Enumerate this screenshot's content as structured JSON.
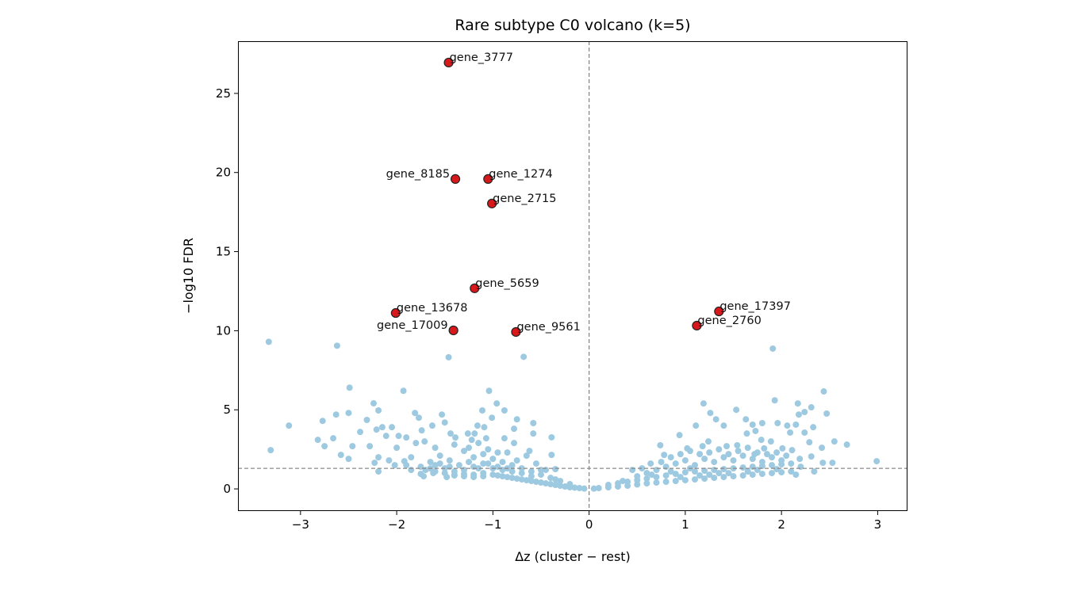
{
  "chart_data": {
    "type": "scatter",
    "title": "Rare subtype C0 volcano (k=5)",
    "xlabel": "Δz (cluster − rest)",
    "ylabel": "−log10 FDR",
    "xlim": [
      -3.65,
      3.31
    ],
    "ylim": [
      -1.4,
      28.3
    ],
    "xticks": [
      -3,
      -2,
      -1,
      0,
      1,
      2,
      3
    ],
    "xtick_labels": [
      "−3",
      "−2",
      "−1",
      "0",
      "1",
      "2",
      "3"
    ],
    "yticks": [
      0,
      5,
      10,
      15,
      20,
      25
    ],
    "ytick_labels": [
      "0",
      "5",
      "10",
      "15",
      "20",
      "25"
    ],
    "grid": false,
    "reference_lines": {
      "vertical_x": 0,
      "horizontal_y": 1.3
    },
    "colors": {
      "background_points": "#9ecae1",
      "highlight_points": "#d7191c",
      "highlight_edge": "#222222",
      "reference_line": "#888888"
    },
    "highlighted": [
      {
        "label": "gene_3777",
        "x": -1.46,
        "y": 26.95
      },
      {
        "label": "gene_8185",
        "x": -1.39,
        "y": 19.59
      },
      {
        "label": "gene_1274",
        "x": -1.05,
        "y": 19.59
      },
      {
        "label": "gene_2715",
        "x": -1.01,
        "y": 18.04
      },
      {
        "label": "gene_5659",
        "x": -1.19,
        "y": 12.68
      },
      {
        "label": "gene_13678",
        "x": -2.01,
        "y": 11.12
      },
      {
        "label": "gene_17009",
        "x": -1.41,
        "y": 10.02
      },
      {
        "label": "gene_9561",
        "x": -0.76,
        "y": 9.92
      },
      {
        "label": "gene_17397",
        "x": 1.35,
        "y": 11.22
      },
      {
        "label": "gene_2760",
        "x": 1.12,
        "y": 10.32
      }
    ],
    "points": [
      [
        -3.33,
        9.3
      ],
      [
        -2.62,
        9.05
      ],
      [
        -1.46,
        8.32
      ],
      [
        -0.68,
        8.35
      ],
      [
        -2.49,
        6.4
      ],
      [
        -1.93,
        6.2
      ],
      [
        -1.04,
        6.2
      ],
      [
        -2.24,
        5.41
      ],
      [
        -2.19,
        4.96
      ],
      [
        -3.12,
        4.0
      ],
      [
        -2.77,
        4.3
      ],
      [
        -2.63,
        4.7
      ],
      [
        -2.5,
        4.8
      ],
      [
        -2.31,
        4.36
      ],
      [
        -3.31,
        2.45
      ],
      [
        -2.82,
        3.1
      ],
      [
        -2.66,
        3.2
      ],
      [
        -2.75,
        2.7
      ],
      [
        -2.58,
        2.15
      ],
      [
        -2.5,
        1.9
      ],
      [
        -2.46,
        2.7
      ],
      [
        -2.38,
        3.6
      ],
      [
        -2.21,
        3.75
      ],
      [
        -2.15,
        3.9
      ],
      [
        -2.05,
        3.9
      ],
      [
        -2.11,
        3.35
      ],
      [
        -2.28,
        2.7
      ],
      [
        -2.19,
        2.0
      ],
      [
        -2.23,
        1.65
      ],
      [
        -2.19,
        1.1
      ],
      [
        -1.98,
        3.35
      ],
      [
        -1.9,
        3.25
      ],
      [
        -2.08,
        1.8
      ],
      [
        -2.02,
        1.5
      ],
      [
        -1.92,
        1.75
      ],
      [
        -1.81,
        4.8
      ],
      [
        -1.77,
        4.5
      ],
      [
        -1.53,
        4.7
      ],
      [
        -1.5,
        4.2
      ],
      [
        -1.63,
        4.0
      ],
      [
        -1.74,
        3.7
      ],
      [
        -1.44,
        3.5
      ],
      [
        -1.26,
        3.5
      ],
      [
        -1.19,
        3.5
      ],
      [
        -1.16,
        4.0
      ],
      [
        -1.09,
        3.9
      ],
      [
        -1.11,
        4.96
      ],
      [
        -1.01,
        4.5
      ],
      [
        -0.96,
        5.4
      ],
      [
        -0.88,
        4.96
      ],
      [
        -0.75,
        4.4
      ],
      [
        -0.58,
        4.16
      ],
      [
        -0.58,
        3.5
      ],
      [
        -0.39,
        3.26
      ],
      [
        -0.39,
        2.15
      ],
      [
        -0.78,
        3.8
      ],
      [
        -0.88,
        3.2
      ],
      [
        -1.07,
        3.2
      ],
      [
        -1.22,
        3.1
      ],
      [
        -1.39,
        3.25
      ],
      [
        -1.71,
        3.0
      ],
      [
        -1.75,
        0.95
      ],
      [
        -1.48,
        0.75
      ],
      [
        -1.62,
        1.0
      ],
      [
        -0.35,
        1.25
      ],
      [
        -0.05,
        0.02
      ],
      [
        -0.1,
        0.05
      ],
      [
        -0.15,
        0.08
      ],
      [
        -0.2,
        0.1
      ],
      [
        -0.25,
        0.15
      ],
      [
        -0.3,
        0.2
      ],
      [
        -0.35,
        0.25
      ],
      [
        -0.4,
        0.3
      ],
      [
        -0.45,
        0.35
      ],
      [
        -0.5,
        0.4
      ],
      [
        -0.55,
        0.45
      ],
      [
        -0.6,
        0.5
      ],
      [
        -0.65,
        0.55
      ],
      [
        -0.7,
        0.6
      ],
      [
        -0.75,
        0.65
      ],
      [
        -0.8,
        0.7
      ],
      [
        -0.85,
        0.75
      ],
      [
        -0.9,
        0.8
      ],
      [
        -0.95,
        0.85
      ],
      [
        -1.0,
        0.9
      ],
      [
        -1.1,
        0.8
      ],
      [
        -1.2,
        0.75
      ],
      [
        -1.3,
        0.8
      ],
      [
        -1.4,
        0.85
      ],
      [
        -0.3,
        0.5
      ],
      [
        -0.4,
        0.7
      ],
      [
        -0.5,
        0.9
      ],
      [
        -0.6,
        1.1
      ],
      [
        -0.7,
        1.3
      ],
      [
        -0.8,
        1.5
      ],
      [
        -0.9,
        1.7
      ],
      [
        -1.0,
        1.9
      ],
      [
        -1.1,
        1.6
      ],
      [
        -1.2,
        1.4
      ],
      [
        -1.3,
        1.2
      ],
      [
        -1.4,
        1.1
      ],
      [
        -1.5,
        1.3
      ],
      [
        -1.6,
        1.5
      ],
      [
        -1.1,
        1.0
      ],
      [
        -1.2,
        0.9
      ],
      [
        -1.3,
        0.95
      ],
      [
        -1.4,
        0.9
      ],
      [
        -1.5,
        1.0
      ],
      [
        -1.6,
        1.1
      ],
      [
        -1.7,
        1.2
      ],
      [
        -0.6,
        0.8
      ],
      [
        -0.7,
        1.0
      ],
      [
        -0.8,
        1.1
      ],
      [
        -0.9,
        1.2
      ],
      [
        -1.0,
        1.3
      ],
      [
        -1.1,
        2.2
      ],
      [
        -1.2,
        2.0
      ],
      [
        -1.3,
        2.4
      ],
      [
        -0.95,
        2.3
      ],
      [
        -0.75,
        1.8
      ],
      [
        -0.65,
        2.1
      ],
      [
        -0.55,
        1.6
      ],
      [
        -0.45,
        1.2
      ],
      [
        -1.45,
        1.8
      ],
      [
        -1.55,
        2.1
      ],
      [
        -1.65,
        1.7
      ],
      [
        -1.75,
        1.4
      ],
      [
        -1.85,
        2.0
      ],
      [
        -1.9,
        1.5
      ],
      [
        -2.0,
        2.6
      ],
      [
        -1.8,
        2.9
      ],
      [
        -1.6,
        2.6
      ],
      [
        -1.4,
        2.8
      ],
      [
        -1.25,
        2.6
      ],
      [
        -1.15,
        2.9
      ],
      [
        -1.05,
        2.5
      ],
      [
        -0.85,
        2.3
      ],
      [
        -0.78,
        2.9
      ],
      [
        -0.62,
        2.4
      ],
      [
        -1.72,
        0.8
      ],
      [
        -1.35,
        1.5
      ],
      [
        -1.25,
        1.7
      ],
      [
        -1.05,
        1.6
      ],
      [
        -0.95,
        1.4
      ],
      [
        -0.85,
        1.3
      ],
      [
        -1.15,
        1.3
      ],
      [
        -1.45,
        1.4
      ],
      [
        -1.55,
        1.6
      ],
      [
        -1.65,
        1.3
      ],
      [
        -0.5,
        1.2
      ],
      [
        -0.2,
        0.3
      ],
      [
        -0.35,
        0.6
      ],
      [
        -1.85,
        1.2
      ],
      [
        1.91,
        8.87
      ],
      [
        2.44,
        6.16
      ],
      [
        1.93,
        5.6
      ],
      [
        1.19,
        5.4
      ],
      [
        2.17,
        5.4
      ],
      [
        2.31,
        5.16
      ],
      [
        2.24,
        4.86
      ],
      [
        2.47,
        4.76
      ],
      [
        2.18,
        4.7
      ],
      [
        1.53,
        5.0
      ],
      [
        1.26,
        4.8
      ],
      [
        1.32,
        4.4
      ],
      [
        1.4,
        4.0
      ],
      [
        1.63,
        4.4
      ],
      [
        1.11,
        4.0
      ],
      [
        0.94,
        3.4
      ],
      [
        0.74,
        2.76
      ],
      [
        1.96,
        4.16
      ],
      [
        2.06,
        4.0
      ],
      [
        2.15,
        4.06
      ],
      [
        2.33,
        3.9
      ],
      [
        2.24,
        3.56
      ],
      [
        1.8,
        4.16
      ],
      [
        1.7,
        4.06
      ],
      [
        1.73,
        3.66
      ],
      [
        1.64,
        3.5
      ],
      [
        1.79,
        3.1
      ],
      [
        1.89,
        3.0
      ],
      [
        2.09,
        3.56
      ],
      [
        2.29,
        2.95
      ],
      [
        2.42,
        2.6
      ],
      [
        2.55,
        3.0
      ],
      [
        2.68,
        2.8
      ],
      [
        2.99,
        1.75
      ],
      [
        2.53,
        1.65
      ],
      [
        2.43,
        1.65
      ],
      [
        2.34,
        1.1
      ],
      [
        2.31,
        2.05
      ],
      [
        2.19,
        1.9
      ],
      [
        1.24,
        3.0
      ],
      [
        1.18,
        2.7
      ],
      [
        1.02,
        2.56
      ],
      [
        0.78,
        2.15
      ],
      [
        0.64,
        1.6
      ],
      [
        1.82,
        2.56
      ],
      [
        1.43,
        2.7
      ],
      [
        1.54,
        2.76
      ],
      [
        1.72,
        2.2
      ],
      [
        2.01,
        2.56
      ],
      [
        2.11,
        2.45
      ],
      [
        0.05,
        0.02
      ],
      [
        0.1,
        0.05
      ],
      [
        0.2,
        0.1
      ],
      [
        0.3,
        0.15
      ],
      [
        0.4,
        0.2
      ],
      [
        0.5,
        0.28
      ],
      [
        0.6,
        0.35
      ],
      [
        0.7,
        0.4
      ],
      [
        0.8,
        0.45
      ],
      [
        0.9,
        0.5
      ],
      [
        1.0,
        0.55
      ],
      [
        1.1,
        0.6
      ],
      [
        1.2,
        0.65
      ],
      [
        1.3,
        0.7
      ],
      [
        1.4,
        0.75
      ],
      [
        1.5,
        0.8
      ],
      [
        1.6,
        0.85
      ],
      [
        1.7,
        0.9
      ],
      [
        1.8,
        0.95
      ],
      [
        1.9,
        1.0
      ],
      [
        2.0,
        1.05
      ],
      [
        2.1,
        1.1
      ],
      [
        0.3,
        0.35
      ],
      [
        0.4,
        0.45
      ],
      [
        0.5,
        0.55
      ],
      [
        0.6,
        0.65
      ],
      [
        0.7,
        0.75
      ],
      [
        0.8,
        0.85
      ],
      [
        0.9,
        0.95
      ],
      [
        1.0,
        1.05
      ],
      [
        1.1,
        1.1
      ],
      [
        1.2,
        1.15
      ],
      [
        1.3,
        1.2
      ],
      [
        1.4,
        1.25
      ],
      [
        1.5,
        1.3
      ],
      [
        1.6,
        1.35
      ],
      [
        1.7,
        1.4
      ],
      [
        1.8,
        1.45
      ],
      [
        1.9,
        1.5
      ],
      [
        2.0,
        1.55
      ],
      [
        0.5,
        0.8
      ],
      [
        0.6,
        1.0
      ],
      [
        0.7,
        1.2
      ],
      [
        0.8,
        1.4
      ],
      [
        0.9,
        1.6
      ],
      [
        1.0,
        1.8
      ],
      [
        1.1,
        1.5
      ],
      [
        1.2,
        1.9
      ],
      [
        1.3,
        1.7
      ],
      [
        1.4,
        2.0
      ],
      [
        1.5,
        1.8
      ],
      [
        1.6,
        2.1
      ],
      [
        1.7,
        1.9
      ],
      [
        1.8,
        1.7
      ],
      [
        1.9,
        2.0
      ],
      [
        2.0,
        1.8
      ],
      [
        2.1,
        1.6
      ],
      [
        2.2,
        1.4
      ],
      [
        0.45,
        1.2
      ],
      [
        0.55,
        1.3
      ],
      [
        0.75,
        1.7
      ],
      [
        0.85,
        2.0
      ],
      [
        0.95,
        2.2
      ],
      [
        1.05,
        2.4
      ],
      [
        1.15,
        2.2
      ],
      [
        1.25,
        2.3
      ],
      [
        1.35,
        2.5
      ],
      [
        1.45,
        2.2
      ],
      [
        1.55,
        2.4
      ],
      [
        1.65,
        2.6
      ],
      [
        1.75,
        2.3
      ],
      [
        1.85,
        2.2
      ],
      [
        1.95,
        2.3
      ],
      [
        2.05,
        2.1
      ],
      [
        0.2,
        0.25
      ],
      [
        0.35,
        0.5
      ],
      [
        0.65,
        0.9
      ],
      [
        1.05,
        1.3
      ],
      [
        1.35,
        1.0
      ],
      [
        1.65,
        1.1
      ],
      [
        1.95,
        1.25
      ],
      [
        2.15,
        0.9
      ],
      [
        1.25,
        0.9
      ],
      [
        1.45,
        1.0
      ],
      [
        1.75,
        1.2
      ],
      [
        0.95,
        0.75
      ],
      [
        0.85,
        1.1
      ],
      [
        1.15,
        0.85
      ]
    ]
  }
}
